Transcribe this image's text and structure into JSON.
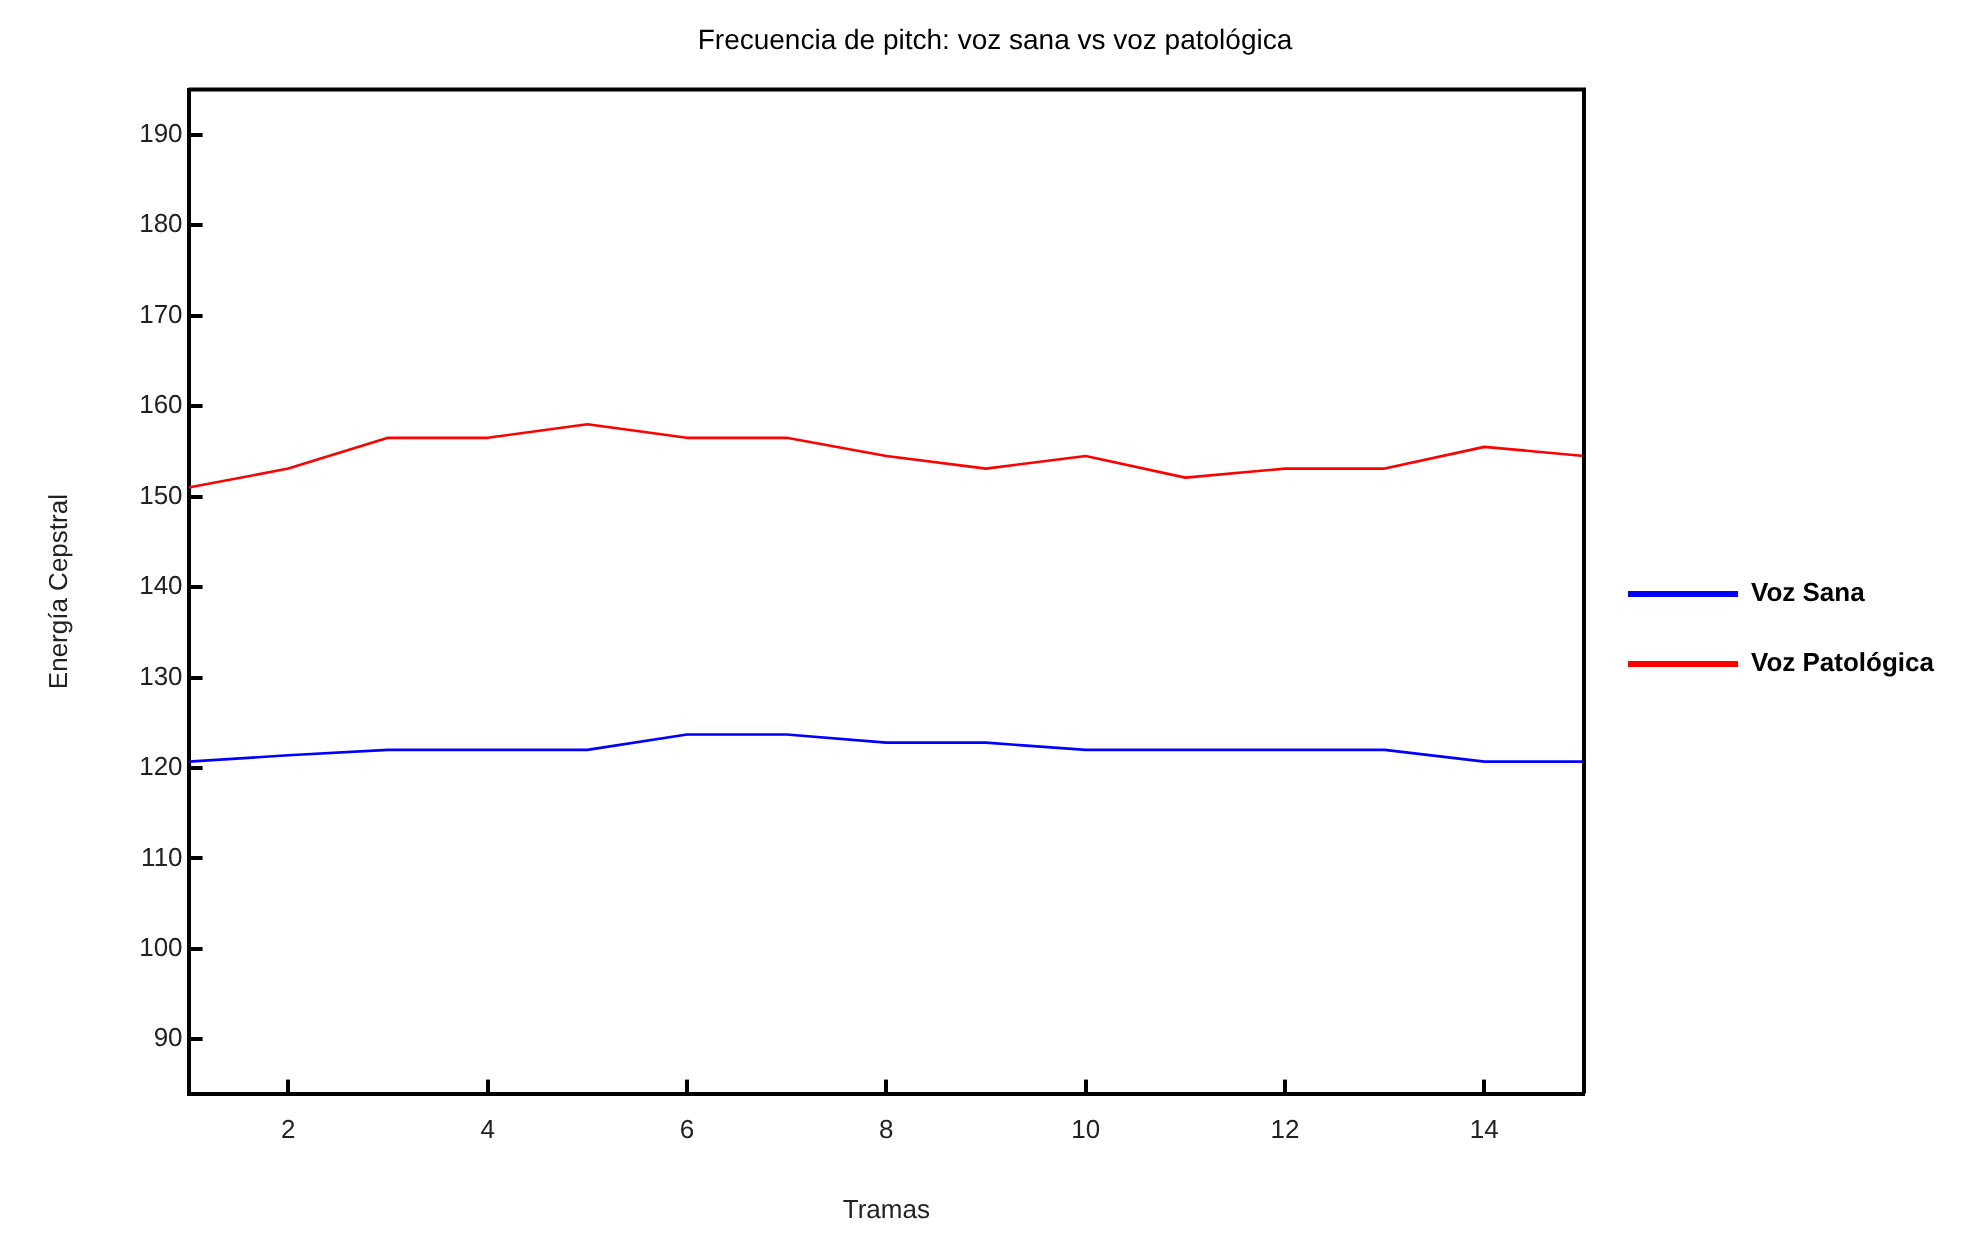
{
  "chart_data": {
    "type": "line",
    "title": "Frecuencia de pitch: voz sana vs voz patológica",
    "xlabel": "Tramas",
    "ylabel": "Energía Cepstral",
    "x": [
      1,
      2,
      3,
      4,
      5,
      6,
      7,
      8,
      9,
      10,
      11,
      12,
      13,
      14,
      15
    ],
    "series": [
      {
        "name": "Voz Sana",
        "color": "#0000ff",
        "values": [
          120.7,
          121.4,
          122,
          122,
          122,
          123.7,
          123.7,
          122.8,
          122.8,
          122,
          122,
          122,
          122,
          120.7,
          120.7
        ]
      },
      {
        "name": "Voz Patológica",
        "color": "#ff0000",
        "values": [
          151,
          153.1,
          156.5,
          156.5,
          158,
          156.5,
          156.5,
          154.5,
          153.1,
          154.5,
          152.1,
          153.1,
          153.1,
          155.5,
          154.5
        ]
      }
    ],
    "xlim": [
      1,
      15
    ],
    "xticks": [
      2,
      4,
      6,
      8,
      10,
      12,
      14
    ],
    "ylim": [
      84,
      195
    ],
    "yticks": [
      90,
      100,
      110,
      120,
      130,
      140,
      150,
      160,
      170,
      180,
      190
    ],
    "grid": false,
    "legend": "right",
    "marker": "none",
    "line_style": "solid"
  }
}
